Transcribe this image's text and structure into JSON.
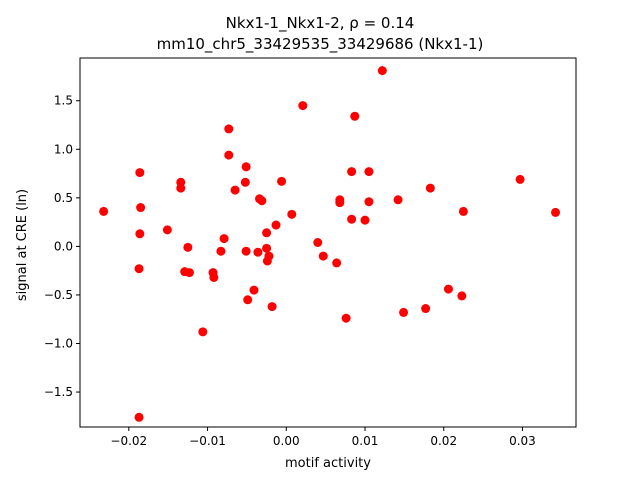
{
  "chart_data": {
    "type": "scatter",
    "title_line1": "Nkx1-1_Nkx1-2, ρ = 0.14",
    "title_line2": "mm10_chr5_33429535_33429686 (Nkx1-1)",
    "xlabel": "motif activity",
    "ylabel": "signal at CRE (ln)",
    "xlim": [
      -0.0262,
      0.0368
    ],
    "ylim": [
      -1.86,
      1.94
    ],
    "xticks": [
      -0.02,
      -0.01,
      0.0,
      0.01,
      0.02,
      0.03
    ],
    "xtick_labels": [
      "−0.02",
      "−0.01",
      "0.00",
      "0.01",
      "0.02",
      "0.03"
    ],
    "yticks": [
      -1.5,
      -1.0,
      -0.5,
      0.0,
      0.5,
      1.0,
      1.5
    ],
    "ytick_labels": [
      "−1.5",
      "−1.0",
      "−0.5",
      "0.0",
      "0.5",
      "1.0",
      "1.5"
    ],
    "grid": false,
    "marker_color": "#ff0000",
    "points": [
      {
        "x": -0.0232,
        "y": 0.36
      },
      {
        "x": -0.0186,
        "y": 0.76
      },
      {
        "x": -0.0185,
        "y": 0.4
      },
      {
        "x": -0.0186,
        "y": 0.13
      },
      {
        "x": -0.0187,
        "y": -0.23
      },
      {
        "x": -0.0187,
        "y": -1.76
      },
      {
        "x": -0.0151,
        "y": 0.17
      },
      {
        "x": -0.0134,
        "y": 0.66
      },
      {
        "x": -0.0134,
        "y": 0.6
      },
      {
        "x": -0.0125,
        "y": -0.01
      },
      {
        "x": -0.0129,
        "y": -0.26
      },
      {
        "x": -0.0123,
        "y": -0.27
      },
      {
        "x": -0.0106,
        "y": -0.88
      },
      {
        "x": -0.0093,
        "y": -0.27
      },
      {
        "x": -0.0092,
        "y": -0.32
      },
      {
        "x": -0.0083,
        "y": -0.05
      },
      {
        "x": -0.0079,
        "y": 0.08
      },
      {
        "x": -0.0073,
        "y": 1.21
      },
      {
        "x": -0.0073,
        "y": 0.94
      },
      {
        "x": -0.0065,
        "y": 0.58
      },
      {
        "x": -0.0051,
        "y": 0.82
      },
      {
        "x": -0.0052,
        "y": 0.66
      },
      {
        "x": -0.0051,
        "y": -0.05
      },
      {
        "x": -0.0049,
        "y": -0.55
      },
      {
        "x": -0.0041,
        "y": -0.45
      },
      {
        "x": -0.0036,
        "y": -0.06
      },
      {
        "x": -0.0034,
        "y": 0.49
      },
      {
        "x": -0.0031,
        "y": 0.47
      },
      {
        "x": -0.0025,
        "y": -0.02
      },
      {
        "x": -0.0025,
        "y": 0.14
      },
      {
        "x": -0.0024,
        "y": -0.15
      },
      {
        "x": -0.0022,
        "y": -0.1
      },
      {
        "x": -0.0018,
        "y": -0.62
      },
      {
        "x": -0.0013,
        "y": 0.22
      },
      {
        "x": -0.0006,
        "y": 0.67
      },
      {
        "x": 0.0007,
        "y": 0.33
      },
      {
        "x": 0.0021,
        "y": 1.45
      },
      {
        "x": 0.004,
        "y": 0.04
      },
      {
        "x": 0.0047,
        "y": -0.1
      },
      {
        "x": 0.0064,
        "y": -0.17
      },
      {
        "x": 0.0068,
        "y": 0.48
      },
      {
        "x": 0.0068,
        "y": 0.45
      },
      {
        "x": 0.0076,
        "y": -0.74
      },
      {
        "x": 0.0083,
        "y": 0.77
      },
      {
        "x": 0.0083,
        "y": 0.28
      },
      {
        "x": 0.0087,
        "y": 1.34
      },
      {
        "x": 0.01,
        "y": 0.27
      },
      {
        "x": 0.0105,
        "y": 0.77
      },
      {
        "x": 0.0105,
        "y": 0.46
      },
      {
        "x": 0.0122,
        "y": 1.81
      },
      {
        "x": 0.0142,
        "y": 0.48
      },
      {
        "x": 0.0149,
        "y": -0.68
      },
      {
        "x": 0.0177,
        "y": -0.64
      },
      {
        "x": 0.0183,
        "y": 0.6
      },
      {
        "x": 0.0206,
        "y": -0.44
      },
      {
        "x": 0.0223,
        "y": -0.51
      },
      {
        "x": 0.0225,
        "y": 0.36
      },
      {
        "x": 0.0297,
        "y": 0.69
      },
      {
        "x": 0.0342,
        "y": 0.35
      }
    ]
  }
}
